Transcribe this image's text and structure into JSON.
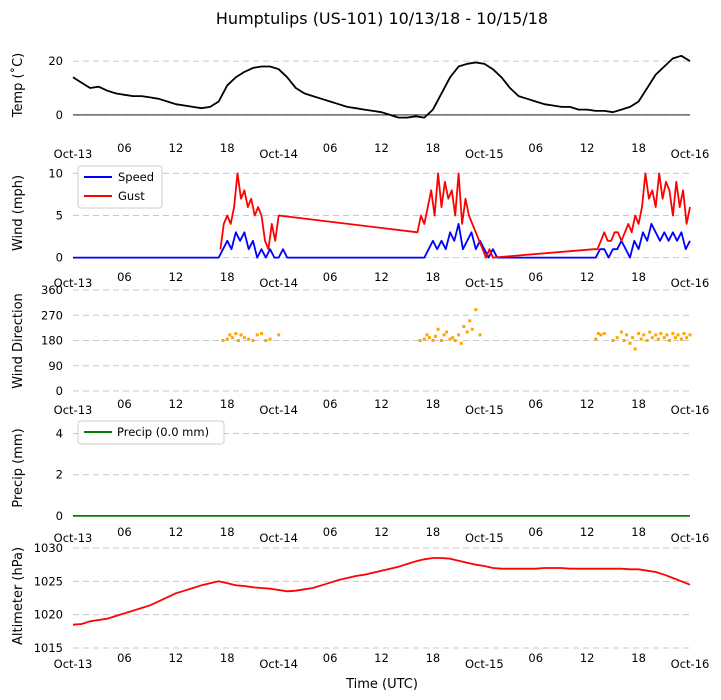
{
  "figure": {
    "title": "Humptulips (US-101) 10/13/18 - 10/15/18",
    "xlabel": "Time (UTC)"
  },
  "x_ticks": [
    "Oct-13",
    "06",
    "12",
    "18",
    "Oct-14",
    "06",
    "12",
    "18",
    "Oct-15",
    "06",
    "12",
    "18",
    "Oct-16"
  ],
  "chart_data": [
    {
      "type": "line",
      "name": "temperature",
      "ylabel": "Temp (˚C)",
      "x_unit": "hours since Oct-13 00:00 UTC",
      "xlim": [
        0,
        72
      ],
      "ylim": [
        -3,
        26
      ],
      "yticks": [
        0,
        20
      ],
      "zero_line": true,
      "color": "#000000",
      "series": [
        {
          "name": "Temp",
          "x": [
            0,
            1,
            2,
            3,
            4,
            5,
            6,
            7,
            8,
            9,
            10,
            11,
            12,
            13,
            14,
            15,
            16,
            17,
            18,
            19,
            20,
            21,
            22,
            23,
            24,
            25,
            26,
            27,
            28,
            29,
            30,
            31,
            32,
            33,
            34,
            35,
            36,
            37,
            38,
            39,
            40,
            41,
            42,
            43,
            44,
            45,
            46,
            47,
            48,
            49,
            50,
            51,
            52,
            53,
            54,
            55,
            56,
            57,
            58,
            59,
            60,
            61,
            62,
            63,
            64,
            65,
            66,
            67,
            68,
            69,
            70,
            71,
            72
          ],
          "values": [
            14,
            12,
            10,
            10.5,
            9,
            8,
            7.5,
            7,
            7,
            6.5,
            6,
            5,
            4,
            3.5,
            3,
            2.5,
            3,
            5,
            11,
            14,
            16,
            17.5,
            18,
            18,
            17,
            14,
            10,
            8,
            7,
            6,
            5,
            4,
            3,
            2.5,
            2,
            1.5,
            1,
            0,
            -1,
            -1,
            -0.5,
            -1,
            2,
            8,
            14,
            18,
            19,
            19.5,
            19,
            17,
            14,
            10,
            7,
            6,
            5,
            4,
            3.5,
            3,
            3,
            2,
            2,
            1.5,
            1.5,
            1,
            2,
            3,
            5,
            10,
            15,
            18,
            21,
            22,
            20
          ]
        }
      ]
    },
    {
      "type": "line",
      "name": "wind_speed",
      "ylabel": "Wind (mph)",
      "x_unit": "hours since Oct-13 00:00 UTC",
      "xlim": [
        0,
        72
      ],
      "ylim": [
        -1,
        11
      ],
      "yticks": [
        0,
        5,
        10
      ],
      "legend": "top-left",
      "series": [
        {
          "name": "Speed",
          "color": "#0000ff",
          "x": [
            0,
            17,
            17.5,
            18,
            18.5,
            19,
            19.5,
            20,
            20.5,
            21,
            21.5,
            22,
            22.5,
            23,
            23.5,
            24,
            24.5,
            25,
            40,
            41,
            41.5,
            42,
            42.5,
            43,
            43.5,
            44,
            44.5,
            45,
            45.5,
            46,
            46.5,
            47,
            47.5,
            48,
            48.5,
            49,
            49.5,
            50,
            61,
            61.5,
            62,
            62.5,
            63,
            63.5,
            64,
            64.5,
            65,
            65.5,
            66,
            66.5,
            67,
            67.5,
            68,
            68.5,
            69,
            69.5,
            70,
            70.5,
            71,
            71.5,
            72
          ],
          "values": [
            0,
            0,
            1,
            2,
            1,
            3,
            2,
            3,
            1,
            2,
            0,
            1,
            0,
            1,
            0,
            0,
            1,
            0,
            0,
            0,
            1,
            2,
            1,
            2,
            1,
            3,
            2,
            4,
            1,
            2,
            3,
            1,
            2,
            1,
            0,
            1,
            0,
            0,
            0,
            1,
            1,
            0,
            1,
            1,
            2,
            1,
            0,
            2,
            1,
            3,
            2,
            4,
            3,
            2,
            3,
            2,
            3,
            2,
            3,
            1,
            2
          ]
        },
        {
          "name": "Gust",
          "color": "#ff0000",
          "x": [
            17.2,
            17.6,
            18,
            18.4,
            18.8,
            19.2,
            19.6,
            20,
            20.4,
            20.8,
            21.2,
            21.6,
            22,
            22.4,
            22.8,
            23.2,
            23.6,
            24,
            40.2,
            40.6,
            41,
            41.4,
            41.8,
            42.2,
            42.6,
            43,
            43.4,
            43.8,
            44.2,
            44.6,
            45,
            45.4,
            45.8,
            46.2,
            46.6,
            47,
            47.4,
            47.8,
            48.2,
            48.6,
            49,
            60.8,
            61.2,
            61.6,
            62,
            62.4,
            62.8,
            63.2,
            63.6,
            64,
            64.4,
            64.8,
            65.2,
            65.6,
            66,
            66.4,
            66.8,
            67.2,
            67.6,
            68,
            68.4,
            68.8,
            69.2,
            69.6,
            70,
            70.4,
            70.8,
            71.2,
            71.6,
            72
          ],
          "values": [
            1,
            4,
            5,
            4,
            6,
            10,
            7,
            8,
            6,
            7,
            5,
            6,
            5,
            2,
            1,
            4,
            2,
            5,
            3,
            5,
            4,
            6,
            8,
            5,
            10,
            6,
            9,
            7,
            8,
            5,
            10,
            4,
            7,
            5,
            4,
            3,
            2,
            1,
            0,
            1,
            0,
            1,
            1,
            2,
            3,
            2,
            2,
            3,
            3,
            2,
            3,
            4,
            3,
            5,
            4,
            6,
            10,
            7,
            8,
            6,
            10,
            7,
            9,
            8,
            5,
            9,
            6,
            8,
            4,
            6
          ]
        }
      ]
    },
    {
      "type": "scatter",
      "name": "wind_direction",
      "ylabel": "Wind Direction",
      "x_unit": "hours since Oct-13 00:00 UTC",
      "xlim": [
        0,
        72
      ],
      "ylim": [
        0,
        360
      ],
      "yticks": [
        0,
        90,
        180,
        270,
        360
      ],
      "color": "#ffa500",
      "series": [
        {
          "name": "Direction",
          "x": [
            17.5,
            18,
            18.3,
            18.6,
            19,
            19.3,
            19.6,
            20,
            20.5,
            21,
            21.5,
            22,
            22.5,
            23,
            24,
            40.5,
            41,
            41.3,
            41.6,
            42,
            42.3,
            42.6,
            43,
            43.3,
            43.6,
            44,
            44.3,
            44.6,
            45,
            45.3,
            45.6,
            46,
            46.3,
            46.6,
            47,
            47.5,
            61,
            61.3,
            61.6,
            62,
            63,
            63.5,
            64,
            64.3,
            64.6,
            65,
            65.3,
            65.6,
            66,
            66.3,
            66.6,
            67,
            67.3,
            67.6,
            68,
            68.3,
            68.6,
            69,
            69.3,
            69.6,
            70,
            70.3,
            70.6,
            71,
            71.3,
            71.6,
            72
          ],
          "values": [
            180,
            185,
            200,
            190,
            205,
            180,
            200,
            190,
            185,
            180,
            200,
            205,
            180,
            185,
            200,
            180,
            185,
            200,
            190,
            180,
            195,
            220,
            180,
            200,
            210,
            185,
            190,
            180,
            200,
            170,
            230,
            210,
            250,
            220,
            290,
            200,
            185,
            205,
            200,
            205,
            180,
            190,
            210,
            180,
            200,
            170,
            190,
            150,
            205,
            185,
            200,
            180,
            210,
            190,
            200,
            185,
            205,
            190,
            200,
            180,
            205,
            190,
            200,
            185,
            205,
            190,
            200
          ]
        }
      ]
    },
    {
      "type": "line",
      "name": "precip",
      "ylabel": "Precip (mm)",
      "x_unit": "hours since Oct-13 00:00 UTC",
      "xlim": [
        0,
        72
      ],
      "ylim": [
        -0.2,
        4.9
      ],
      "yticks": [
        0,
        2,
        4
      ],
      "legend": "top-left",
      "color": "#008000",
      "series": [
        {
          "name": "Precip (0.0 mm)",
          "x": [
            0,
            72
          ],
          "values": [
            0,
            0
          ]
        }
      ]
    },
    {
      "type": "line",
      "name": "altimeter",
      "ylabel": "Altimeter (hPa)",
      "x_unit": "hours since Oct-13 00:00 UTC",
      "xlim": [
        0,
        72
      ],
      "ylim": [
        1015,
        1030
      ],
      "yticks": [
        1015,
        1020,
        1025,
        1030
      ],
      "color": "#ff0000",
      "series": [
        {
          "name": "Altimeter",
          "x": [
            0,
            1,
            2,
            3,
            4,
            5,
            6,
            7,
            8,
            9,
            10,
            11,
            12,
            13,
            14,
            15,
            16,
            17,
            18,
            19,
            20,
            21,
            22,
            23,
            24,
            25,
            26,
            27,
            28,
            29,
            30,
            31,
            32,
            33,
            34,
            35,
            36,
            37,
            38,
            39,
            40,
            41,
            42,
            43,
            44,
            45,
            46,
            47,
            48,
            49,
            50,
            51,
            52,
            53,
            54,
            55,
            56,
            57,
            58,
            59,
            60,
            61,
            62,
            63,
            64,
            65,
            66,
            67,
            68,
            69,
            70,
            71,
            72
          ],
          "values": [
            1018.5,
            1018.6,
            1019,
            1019.2,
            1019.4,
            1019.8,
            1020.2,
            1020.6,
            1021,
            1021.4,
            1022,
            1022.6,
            1023.2,
            1023.6,
            1024,
            1024.4,
            1024.7,
            1025,
            1024.7,
            1024.4,
            1024.3,
            1024.1,
            1024,
            1023.9,
            1023.7,
            1023.5,
            1023.6,
            1023.8,
            1024,
            1024.4,
            1024.8,
            1025.2,
            1025.5,
            1025.8,
            1026,
            1026.3,
            1026.6,
            1026.9,
            1027.2,
            1027.6,
            1028,
            1028.3,
            1028.5,
            1028.5,
            1028.4,
            1028.1,
            1027.8,
            1027.5,
            1027.3,
            1027,
            1026.9,
            1026.9,
            1026.9,
            1026.9,
            1026.9,
            1027,
            1027,
            1027,
            1026.9,
            1026.9,
            1026.9,
            1026.9,
            1026.9,
            1026.9,
            1026.9,
            1026.8,
            1026.8,
            1026.6,
            1026.4,
            1026,
            1025.5,
            1025,
            1024.5
          ]
        }
      ]
    }
  ]
}
